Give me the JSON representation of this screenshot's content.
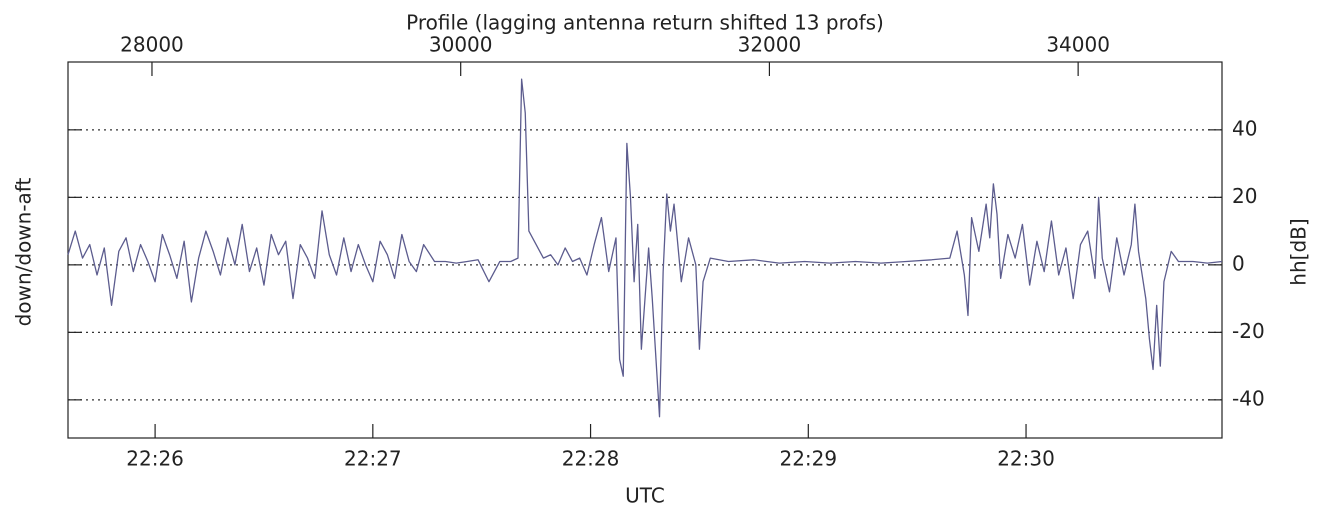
{
  "chart_data": {
    "type": "line",
    "title": "Profile (lagging antenna return shifted 13 profs)",
    "x_label": "UTC",
    "y_label": "down/down-aft",
    "y2_label": "hh[dB]",
    "color": "#5c5c8e",
    "grid": true,
    "x": [
      80736,
      80738,
      80740,
      80742,
      80744,
      80746,
      80748,
      80750,
      80752,
      80754,
      80756,
      80758,
      80760,
      80762,
      80764,
      80766,
      80768,
      80770,
      80772,
      80774,
      80776,
      80778,
      80780,
      80782,
      80784,
      80786,
      80788,
      80790,
      80792,
      80794,
      80796,
      80798,
      80800,
      80802,
      80804,
      80806,
      80808,
      80810,
      80812,
      80814,
      80816,
      80818,
      80820,
      80822,
      80824,
      80826,
      80828,
      80830,
      80832,
      80834,
      80837,
      80840,
      80843,
      80846,
      80849,
      80852,
      80855,
      80858,
      80860,
      80861,
      80862,
      80863,
      80865,
      80867,
      80869,
      80871,
      80873,
      80875,
      80877,
      80879,
      80881,
      80883,
      80885,
      80887,
      80888,
      80889,
      80890,
      80891,
      80892,
      80893,
      80894,
      80896,
      80897,
      80899,
      80900,
      80901,
      80902,
      80903,
      80905,
      80907,
      80909,
      80910,
      80911,
      80913,
      80918,
      80925,
      80932,
      80939,
      80946,
      80953,
      80960,
      80967,
      80974,
      80979,
      80981,
      80983,
      80984,
      80985,
      80987,
      80989,
      80990,
      80991,
      80992,
      80993,
      80995,
      80997,
      80999,
      81001,
      81003,
      81005,
      81007,
      81009,
      81011,
      81013,
      81015,
      81017,
      81019,
      81020,
      81021,
      81023,
      81025,
      81027,
      81029,
      81030,
      81031,
      81033,
      81034,
      81035,
      81036,
      81037,
      81038,
      81040,
      81042,
      81046,
      81050,
      81054
    ],
    "values": [
      3,
      10,
      2,
      6,
      -3,
      5,
      -12,
      4,
      8,
      -2,
      6,
      1,
      -5,
      9,
      3,
      -4,
      7,
      -11,
      2,
      10,
      4,
      -3,
      8,
      0,
      12,
      -2,
      5,
      -6,
      9,
      3,
      7,
      -10,
      6,
      2,
      -4,
      16,
      3,
      -3,
      8,
      -2,
      6,
      0,
      -5,
      7,
      3,
      -4,
      9,
      1,
      -2,
      6,
      1,
      1,
      0.5,
      1,
      1.5,
      -5,
      1,
      1,
      2,
      55,
      45,
      10,
      6,
      2,
      3,
      0,
      5,
      1,
      2,
      -3,
      6,
      14,
      -2,
      8,
      -28,
      -33,
      36,
      20,
      -5,
      12,
      -25,
      5,
      -10,
      -45,
      -2,
      21,
      10,
      18,
      -5,
      8,
      0,
      -25,
      -5,
      2,
      1,
      1.5,
      0.5,
      1,
      0.5,
      1,
      0.5,
      1,
      1.5,
      2,
      10,
      -3,
      -15,
      14,
      4,
      18,
      8,
      24,
      15,
      -4,
      9,
      2,
      12,
      -6,
      7,
      -2,
      13,
      -3,
      5,
      -10,
      6,
      10,
      -4,
      20,
      2,
      -8,
      8,
      -3,
      6,
      18,
      4,
      -10,
      -22,
      -31,
      -12,
      -30,
      -5,
      4,
      1,
      1,
      0.5,
      1
    ],
    "xlim": [
      80736,
      81054
    ],
    "xticks": [
      {
        "value": 80760,
        "label": "22:26"
      },
      {
        "value": 80820,
        "label": "22:27"
      },
      {
        "value": 80880,
        "label": "22:28"
      },
      {
        "value": 80940,
        "label": "22:29"
      },
      {
        "value": 81000,
        "label": "22:30"
      }
    ],
    "x2lim": [
      27456,
      34932
    ],
    "x2ticks": [
      28000,
      30000,
      32000,
      34000
    ],
    "ylim": [
      -51.3,
      60.1
    ],
    "yticks": [
      -40,
      -20,
      0,
      20,
      40
    ]
  }
}
